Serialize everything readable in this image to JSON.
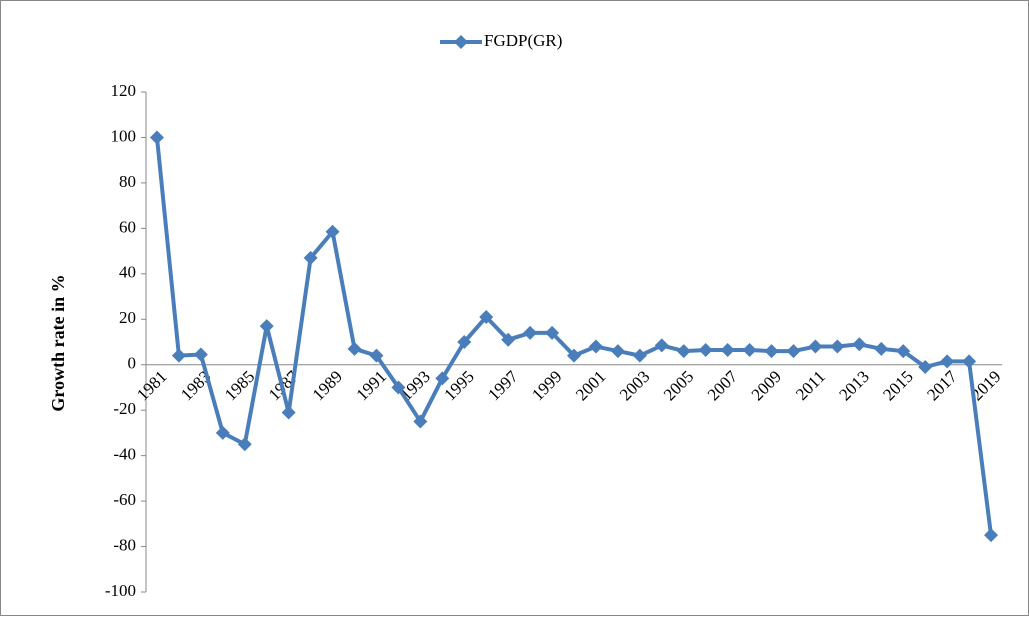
{
  "chart_data": {
    "type": "line",
    "y_label": "Growth rate in %",
    "categories": [
      "1981",
      null,
      "1983",
      null,
      "1985",
      null,
      "1987",
      null,
      "1989",
      null,
      "1991",
      null,
      "1993",
      null,
      "1995",
      null,
      "1997",
      null,
      "1999",
      null,
      "2001",
      null,
      "2003",
      null,
      "2005",
      null,
      "2007",
      null,
      "2009",
      null,
      "2011",
      null,
      "2013",
      null,
      "2015",
      null,
      "2017",
      null,
      "2019"
    ],
    "series": [
      {
        "name": "FGDP(GR)",
        "color": "#4a7ebb",
        "values": [
          100,
          4,
          4.5,
          -30,
          -35,
          17,
          -21,
          47,
          58.5,
          7,
          4,
          -10,
          -25,
          -6,
          10,
          21,
          11,
          14,
          14,
          4,
          8,
          6,
          4,
          8.5,
          6,
          6.5,
          6.5,
          6.5,
          6,
          6,
          8,
          8,
          9,
          7,
          6,
          -1,
          1.5,
          1.5,
          -75
        ]
      }
    ],
    "ylim": [
      -100,
      120
    ],
    "yticks": [
      -100,
      -80,
      -60,
      -40,
      -20,
      0,
      20,
      40,
      60,
      80,
      100,
      120
    ],
    "grid": false,
    "legend": "top"
  }
}
